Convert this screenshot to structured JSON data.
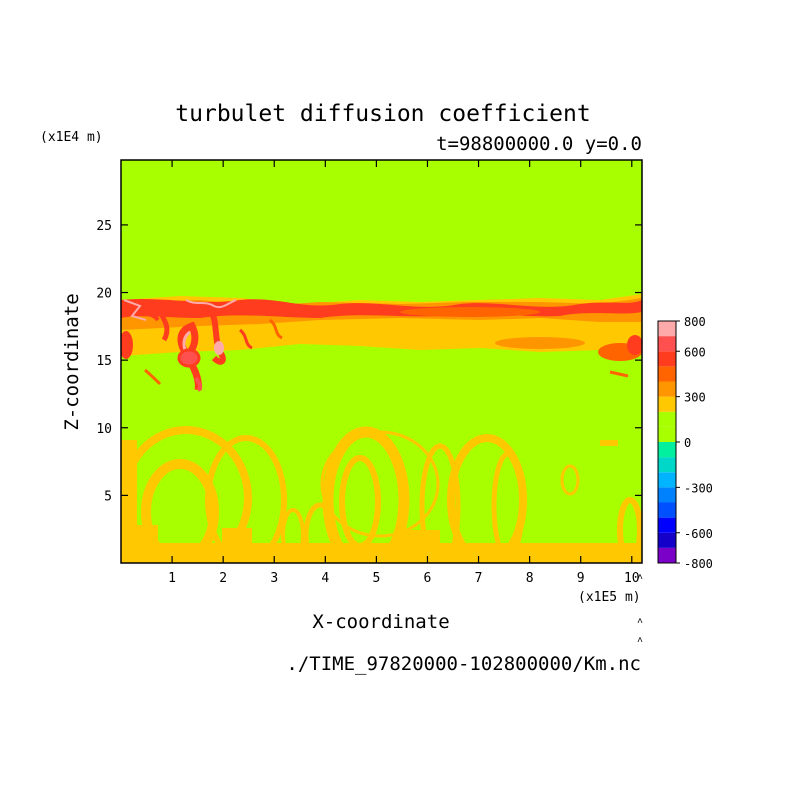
{
  "chart_data": {
    "type": "heatmap",
    "title": "turbulet diffusion coefficient",
    "subtitle": "t=98800000.0 y=0.0",
    "xlabel": "X-coordinate",
    "ylabel": "Z-coordinate",
    "x_unit": "(x1E5 m)",
    "y_unit": "(x1E4 m)",
    "footer": "./TIME_97820000-102800000/Km.nc",
    "xlim": [
      0,
      10.2
    ],
    "ylim": [
      0,
      29.8
    ],
    "x_ticks": [
      1,
      2,
      3,
      4,
      5,
      6,
      7,
      8,
      9,
      10
    ],
    "y_ticks": [
      5,
      10,
      15,
      20,
      25
    ],
    "background_level": 0,
    "colorbar": {
      "levels": [
        -800,
        -700,
        -600,
        -500,
        -400,
        -300,
        -200,
        -100,
        0,
        100,
        200,
        300,
        400,
        500,
        600,
        700,
        800
      ],
      "tick_labels": [
        "800",
        "600",
        "300",
        "0",
        "-300",
        "-600",
        "-800"
      ],
      "tick_values": [
        800,
        600,
        300,
        0,
        -300,
        -600,
        -800
      ],
      "colors": [
        "#7b00c8",
        "#1400c8",
        "#0000ff",
        "#0050ff",
        "#0082ff",
        "#00b4ff",
        "#00d7c8",
        "#00f0a0",
        "#a8ff00",
        "#a8ff00",
        "#ffc800",
        "#ff9600",
        "#ff6400",
        "#ff3c1e",
        "#ff5050",
        "#ffaaaa"
      ]
    },
    "features": [
      {
        "name": "upper active layer",
        "x": [
          0,
          10.2
        ],
        "z": [
          16.5,
          20.0
        ],
        "value_range": [
          200,
          800
        ]
      },
      {
        "name": "convective plumes",
        "x": [
          1.0,
          2.3
        ],
        "z": [
          12.8,
          19.8
        ],
        "value_range": [
          400,
          800
        ]
      },
      {
        "name": "lower boundary layer",
        "x": [
          0,
          10.2
        ],
        "z": [
          0,
          10.0
        ],
        "value_range": [
          200,
          400
        ]
      }
    ]
  }
}
